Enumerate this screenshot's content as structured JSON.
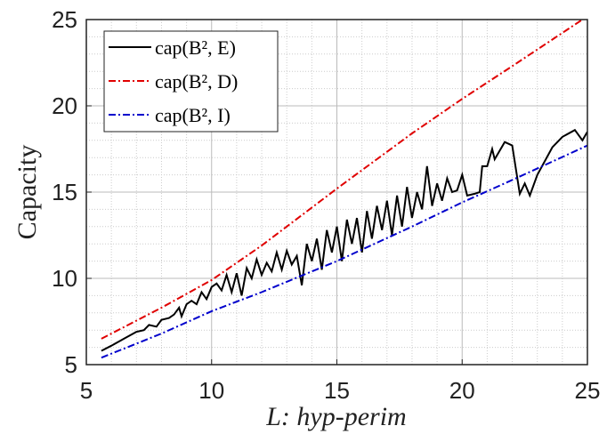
{
  "chart_data": {
    "type": "line",
    "xlabel": "L: hyp-perim",
    "ylabel": "Capacity",
    "xlim": [
      5,
      25
    ],
    "ylim": [
      5,
      25
    ],
    "xticks": [
      5,
      10,
      15,
      20,
      25
    ],
    "yticks": [
      5,
      10,
      15,
      20,
      25
    ],
    "grid": true,
    "minor_grid": true,
    "legend": "upper left",
    "series": [
      {
        "name": "cap(B², E)",
        "color": "#000000",
        "style": "solid",
        "x": [
          5.6,
          6,
          6.5,
          7,
          7.3,
          7.5,
          7.8,
          8,
          8.3,
          8.5,
          8.7,
          8.8,
          9,
          9.2,
          9.4,
          9.6,
          9.8,
          10,
          10.2,
          10.4,
          10.6,
          10.8,
          11,
          11.2,
          11.4,
          11.6,
          11.8,
          12,
          12.2,
          12.4,
          12.6,
          12.8,
          13,
          13.2,
          13.4,
          13.6,
          13.8,
          14,
          14.2,
          14.4,
          14.6,
          14.8,
          15,
          15.2,
          15.4,
          15.6,
          15.8,
          16,
          16.2,
          16.4,
          16.6,
          16.8,
          17,
          17.2,
          17.4,
          17.6,
          17.8,
          18,
          18.2,
          18.4,
          18.6,
          18.8,
          19,
          19.2,
          19.4,
          19.6,
          19.8,
          20,
          20.2,
          20.5,
          20.7,
          20.8,
          21,
          21.2,
          21.3,
          21.7,
          22,
          22.3,
          22.5,
          22.7,
          23,
          23.6,
          24,
          24.5,
          24.8,
          25
        ],
        "values": [
          5.8,
          6.1,
          6.5,
          6.9,
          7.0,
          7.3,
          7.2,
          7.6,
          7.7,
          7.9,
          8.3,
          7.8,
          8.5,
          8.7,
          8.5,
          9.2,
          8.8,
          9.5,
          9.7,
          9.3,
          10.2,
          9.2,
          10.3,
          9.0,
          10.6,
          10.0,
          11.1,
          10.2,
          10.9,
          10.4,
          11.5,
          10.5,
          11.6,
          10.8,
          11.3,
          9.6,
          12.0,
          11.0,
          12.3,
          10.5,
          12.8,
          11.5,
          13.0,
          11.0,
          13.4,
          12.0,
          13.5,
          11.5,
          13.9,
          12.3,
          14.2,
          12.8,
          14.5,
          12.5,
          14.8,
          13.0,
          15.3,
          13.5,
          15.0,
          14.0,
          16.5,
          14.2,
          15.5,
          14.5,
          15.8,
          15.0,
          15.1,
          16.0,
          14.8,
          14.9,
          15.0,
          16.5,
          16.5,
          17.5,
          16.9,
          17.9,
          17.7,
          14.9,
          15.5,
          14.8,
          16.0,
          17.6,
          18.2,
          18.6,
          18.0,
          18.5
        ]
      },
      {
        "name": "cap(B², D)",
        "color": "#e00000",
        "style": "dashdot",
        "x": [
          5.6,
          8,
          10,
          12,
          15,
          18,
          20,
          22,
          24.8
        ],
        "values": [
          6.5,
          8.3,
          9.9,
          11.9,
          15.2,
          18.4,
          20.4,
          22.3,
          25
        ]
      },
      {
        "name": "cap(B², I)",
        "color": "#0000cc",
        "style": "dashdot",
        "x": [
          5.6,
          8,
          10,
          12,
          15,
          18,
          20,
          22,
          25
        ],
        "values": [
          5.4,
          6.8,
          8.1,
          9.2,
          11.0,
          13.0,
          14.4,
          15.7,
          17.7
        ]
      }
    ]
  }
}
